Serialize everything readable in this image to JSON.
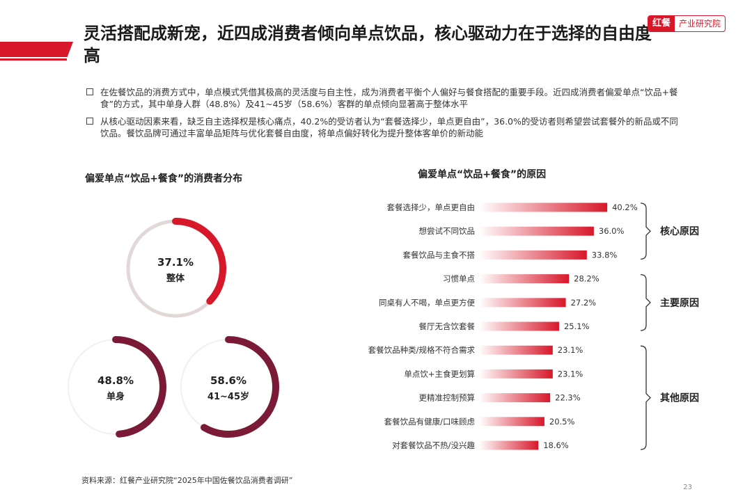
{
  "header": {
    "title": "灵活搭配成新宠，近四成消费者倾向单点饮品，核心驱动力在于选择的自由度高",
    "logo_mark": "红餐",
    "logo_text": "产业研究院"
  },
  "bullets": [
    "在佐餐饮品的消费方式中，单点模式凭借其极高的灵活度与自主性，成为消费者平衡个人偏好与餐食搭配的重要手段。近四成消费者偏爱单点“饮品+餐食”的方式，其中单身人群（48.8%）及41~45岁（58.6%）客群的单点倾向显著高于整体水平",
    "从核心驱动因素来看，缺乏自主选择权是核心痛点，40.2%的受访者认为“套餐选择少，单点更自由”，36.0%的受访者则希望尝试套餐外的新品或不同饮品。餐饮品牌可通过丰富单品矩阵与优化套餐自由度，将单点偏好转化为提升整体客单价的新动能"
  ],
  "left_title": "偏爱单点“饮品+餐食”的消费者分布",
  "right_title": "偏爱单点“饮品+餐食”的原因",
  "source": "资料来源：红餐产业研究院“2025年中国佐餐饮品消费者调研”",
  "page_number": "23",
  "colors": {
    "red": "#d7182a",
    "maroon": "#7a1a36",
    "track": "#e2d8d8"
  },
  "chart_data": [
    {
      "type": "pie",
      "title": "偏爱单点“饮品+餐食”的消费者分布",
      "rings": [
        {
          "value": 37.1,
          "value_label": "37.1%",
          "label": "整体"
        },
        {
          "value": 48.8,
          "value_label": "48.8%",
          "label": "单身"
        },
        {
          "value": 58.6,
          "value_label": "58.6%",
          "label": "41~45岁"
        }
      ]
    },
    {
      "type": "bar",
      "title": "偏爱单点“饮品+餐食”的原因",
      "categories": [
        "套餐选择少，单点更自由",
        "想尝试不同饮品",
        "套餐饮品与主食不搭",
        "习惯单点",
        "同桌有人不喝，单点更方便",
        "餐厅无含饮套餐",
        "套餐饮品种类/规格不符合需求",
        "单点饮+主食更划算",
        "更精准控制预算",
        "套餐饮品有健康/口味顾虑",
        "对套餐饮品不热/没兴趣"
      ],
      "values": [
        40.2,
        36.0,
        33.8,
        28.2,
        27.2,
        25.1,
        23.1,
        23.1,
        22.3,
        20.5,
        18.6
      ],
      "value_labels": [
        "40.2%",
        "36.0%",
        "33.8%",
        "28.2%",
        "27.2%",
        "25.1%",
        "23.1%",
        "23.1%",
        "22.3%",
        "20.5%",
        "18.6%"
      ],
      "groups": [
        {
          "name": "核心原因",
          "start": 0,
          "end": 2
        },
        {
          "name": "主要原因",
          "start": 3,
          "end": 5
        },
        {
          "name": "其他原因",
          "start": 6,
          "end": 10
        }
      ]
    }
  ]
}
